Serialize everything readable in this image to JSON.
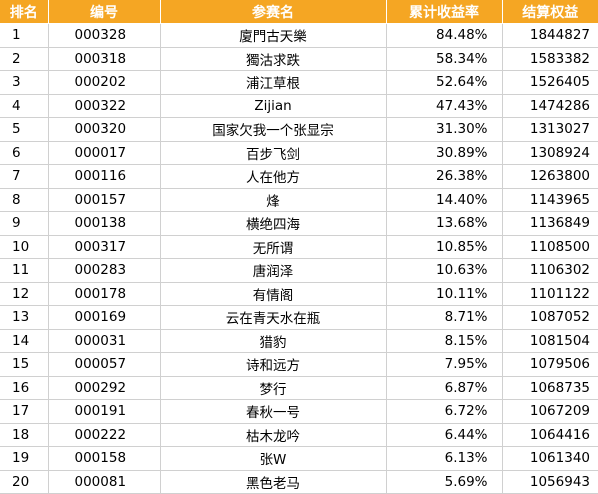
{
  "headers": {
    "rank": "排名",
    "code": "编号",
    "name": "参赛名",
    "rate": "累计收益率",
    "equity": "结算权益"
  },
  "rows": [
    {
      "rank": "1",
      "code": "000328",
      "name": "廈門古天樂",
      "rate": "84.48%",
      "equity": "1844827"
    },
    {
      "rank": "2",
      "code": "000318",
      "name": "獨沽求跌",
      "rate": "58.34%",
      "equity": "1583382"
    },
    {
      "rank": "3",
      "code": "000202",
      "name": "浦江草根",
      "rate": "52.64%",
      "equity": "1526405"
    },
    {
      "rank": "4",
      "code": "000322",
      "name": "Zijian",
      "rate": "47.43%",
      "equity": "1474286"
    },
    {
      "rank": "5",
      "code": "000320",
      "name": "国家欠我一个张显宗",
      "rate": "31.30%",
      "equity": "1313027"
    },
    {
      "rank": "6",
      "code": "000017",
      "name": "百步飞剑",
      "rate": "30.89%",
      "equity": "1308924"
    },
    {
      "rank": "7",
      "code": "000116",
      "name": "人在他方",
      "rate": "26.38%",
      "equity": "1263800"
    },
    {
      "rank": "8",
      "code": "000157",
      "name": "烽",
      "rate": "14.40%",
      "equity": "1143965"
    },
    {
      "rank": "9",
      "code": "000138",
      "name": "横绝四海",
      "rate": "13.68%",
      "equity": "1136849"
    },
    {
      "rank": "10",
      "code": "000317",
      "name": "无所谓",
      "rate": "10.85%",
      "equity": "1108500"
    },
    {
      "rank": "11",
      "code": "000283",
      "name": "唐润泽",
      "rate": "10.63%",
      "equity": "1106302"
    },
    {
      "rank": "12",
      "code": "000178",
      "name": "有情阁",
      "rate": "10.11%",
      "equity": "1101122"
    },
    {
      "rank": "13",
      "code": "000169",
      "name": "云在青天水在瓶",
      "rate": "8.71%",
      "equity": "1087052"
    },
    {
      "rank": "14",
      "code": "000031",
      "name": "猎豹",
      "rate": "8.15%",
      "equity": "1081504"
    },
    {
      "rank": "15",
      "code": "000057",
      "name": "诗和远方",
      "rate": "7.95%",
      "equity": "1079506"
    },
    {
      "rank": "16",
      "code": "000292",
      "name": "梦行",
      "rate": "6.87%",
      "equity": "1068735"
    },
    {
      "rank": "17",
      "code": "000191",
      "name": "春秋一号",
      "rate": "6.72%",
      "equity": "1067209"
    },
    {
      "rank": "18",
      "code": "000222",
      "name": "枯木龙吟",
      "rate": "6.44%",
      "equity": "1064416"
    },
    {
      "rank": "19",
      "code": "000158",
      "name": "张W",
      "rate": "6.13%",
      "equity": "1061340"
    },
    {
      "rank": "20",
      "code": "000081",
      "name": "黑色老马",
      "rate": "5.69%",
      "equity": "1056943"
    }
  ]
}
